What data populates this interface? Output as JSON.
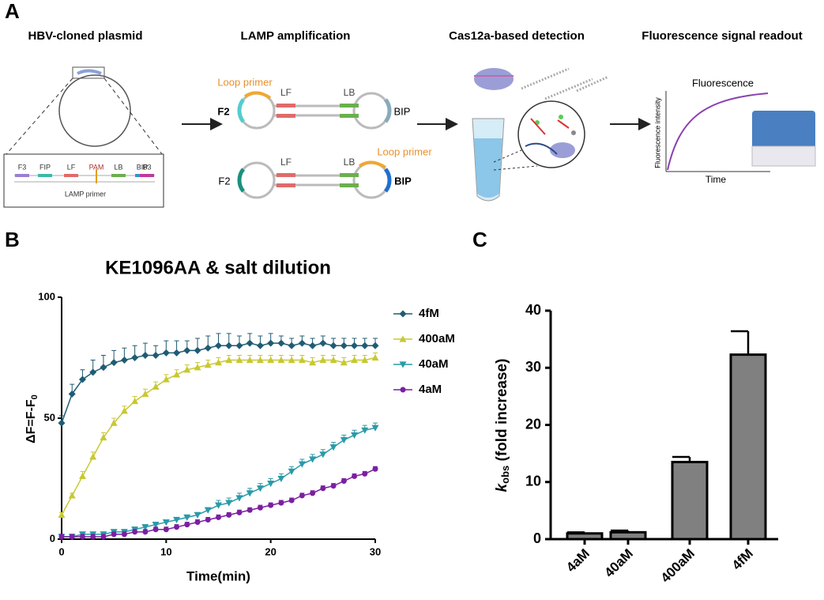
{
  "diagram": {
    "panel": "A",
    "steps": [
      "HBV-cloned plasmid",
      "LAMP amplification",
      "Cas12a-based detection",
      "Fluorescence signal readout"
    ],
    "primers": [
      "F3",
      "FIP",
      "LF",
      "PAM",
      "LB",
      "BIP",
      "B3"
    ],
    "primer_caption": "LAMP primer",
    "lamp_top": {
      "loop": "Loop primer",
      "left": "F2",
      "mid_left": "LF",
      "mid_right": "LB",
      "right": "BIP"
    },
    "lamp_bottom": {
      "loop": "Loop primer",
      "left": "F2",
      "mid_left": "LF",
      "mid_right": "LB",
      "right": "BIP"
    },
    "readout": {
      "title": "Fluorescence",
      "ylabel": "Fluorescence intensity",
      "xlabel": "Time"
    }
  },
  "chart_data": [
    {
      "type": "line",
      "panel": "B",
      "title": "KE1096AA & salt dilution",
      "xlabel": "Time(min)",
      "ylabel": [
        "ΔF=F-F",
        "0"
      ],
      "x": [
        0,
        1,
        2,
        3,
        4,
        5,
        6,
        7,
        8,
        9,
        10,
        11,
        12,
        13,
        14,
        15,
        16,
        17,
        18,
        19,
        20,
        21,
        22,
        23,
        24,
        25,
        26,
        27,
        28,
        29,
        30
      ],
      "xlim": [
        0,
        30
      ],
      "xticks": [
        0,
        10,
        20,
        30
      ],
      "ylim": [
        0,
        100
      ],
      "yticks": [
        0,
        50,
        100
      ],
      "series": [
        {
          "name": "4fM",
          "color": "#1f5c73",
          "marker": "diamond",
          "values": [
            48,
            60,
            66,
            69,
            71,
            73,
            74,
            75,
            76,
            76,
            77,
            77,
            78,
            78,
            79,
            80,
            80,
            80,
            81,
            80,
            81,
            81,
            80,
            81,
            80,
            81,
            80,
            80,
            80,
            80,
            80
          ],
          "errors": [
            3,
            4,
            4,
            5,
            5,
            5,
            5,
            5,
            5,
            4,
            5,
            5,
            4,
            5,
            5,
            5,
            5,
            4,
            4,
            4,
            4,
            3,
            3,
            3,
            3,
            3,
            3,
            3,
            3,
            3,
            3
          ]
        },
        {
          "name": "400aM",
          "color": "#c8c832",
          "marker": "triangle",
          "values": [
            10,
            18,
            26,
            34,
            42,
            48,
            53,
            57,
            60,
            63,
            66,
            68,
            70,
            71,
            72,
            73,
            74,
            74,
            74,
            74,
            74,
            74,
            74,
            74,
            73,
            74,
            74,
            73,
            74,
            74,
            75
          ],
          "errors": [
            1,
            1,
            2,
            2,
            2,
            2,
            2,
            2,
            2,
            2,
            2,
            2,
            2,
            2,
            2,
            2,
            2,
            2,
            2,
            2,
            2,
            2,
            2,
            2,
            2,
            2,
            2,
            2,
            2,
            2,
            2
          ]
        },
        {
          "name": "40aM",
          "color": "#2a9aa8",
          "marker": "triangle-down",
          "values": [
            1,
            1,
            2,
            2,
            2,
            3,
            3,
            4,
            5,
            6,
            7,
            8,
            9,
            10,
            12,
            14,
            15,
            17,
            19,
            21,
            23,
            25,
            28,
            31,
            33,
            35,
            38,
            41,
            43,
            45,
            46
          ],
          "errors": [
            1,
            1,
            1,
            1,
            1,
            1,
            1,
            1,
            1,
            1,
            1,
            1,
            1,
            1,
            1,
            2,
            2,
            2,
            2,
            2,
            2,
            2,
            2,
            2,
            2,
            2,
            2,
            2,
            2,
            2,
            2
          ]
        },
        {
          "name": "4aM",
          "color": "#7b1fa2",
          "marker": "circle",
          "values": [
            1,
            1,
            1,
            1,
            1,
            2,
            2,
            3,
            3,
            4,
            4,
            5,
            6,
            7,
            8,
            9,
            10,
            11,
            12,
            13,
            14,
            15,
            16,
            18,
            19,
            21,
            22,
            24,
            26,
            27,
            29
          ],
          "errors": [
            1,
            1,
            1,
            1,
            1,
            1,
            1,
            1,
            1,
            1,
            1,
            1,
            1,
            1,
            1,
            1,
            1,
            1,
            1,
            1,
            1,
            1,
            1,
            1,
            1,
            1,
            1,
            1,
            1,
            1,
            1
          ]
        }
      ]
    },
    {
      "type": "bar",
      "panel": "C",
      "ylabel": [
        "k",
        "obs",
        " (fold increase)"
      ],
      "categories": [
        "4aM",
        "40aM",
        "400aM",
        "4fM"
      ],
      "values": [
        1,
        1.2,
        13.5,
        32.3
      ],
      "errors": [
        0.2,
        0.3,
        0.9,
        4.1
      ],
      "color": "#808080",
      "ylim": [
        0,
        40
      ],
      "yticks": [
        0,
        10,
        20,
        30,
        40
      ]
    }
  ]
}
